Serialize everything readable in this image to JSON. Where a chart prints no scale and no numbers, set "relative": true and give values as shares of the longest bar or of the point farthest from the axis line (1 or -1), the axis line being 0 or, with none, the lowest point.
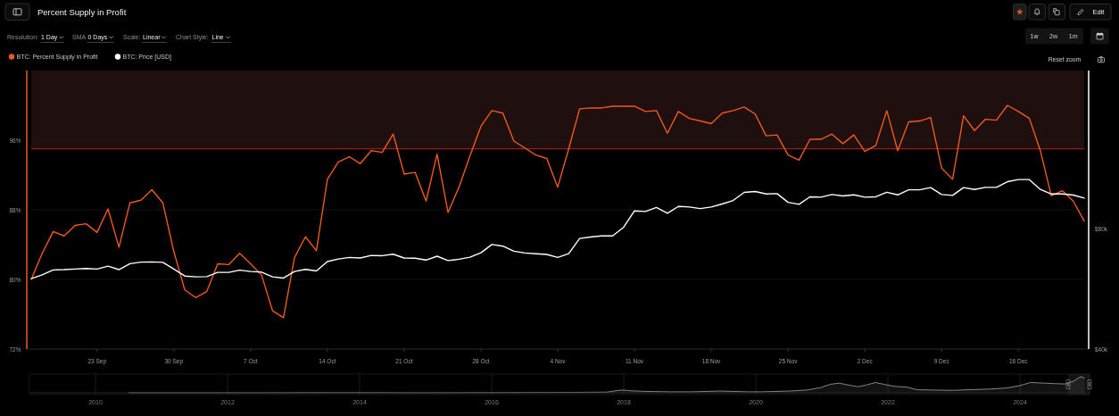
{
  "chart_data": [
    {
      "type": "line",
      "title": "Percent Supply in Profit",
      "annotations": [
        "Resolution:",
        "1 Day",
        "SMA",
        "0 Days",
        "Scale:",
        "Linear",
        "Chart Style:",
        "Line",
        "1w",
        "2w",
        "1m",
        "Reset zoom",
        "Edit"
      ],
      "x": [
        "--09-17",
        "--09-18",
        "--09-19",
        "--09-20",
        "--09-21",
        "--09-22",
        "--09-23",
        "--09-24",
        "--09-25",
        "--09-26",
        "--09-27",
        "--09-28",
        "--09-29",
        "--09-30",
        "--10-01",
        "--10-02",
        "--10-03",
        "--10-04",
        "--10-05",
        "--10-06",
        "--10-07",
        "--10-08",
        "--10-09",
        "--10-10",
        "--10-11",
        "--10-12",
        "--10-13",
        "--10-14",
        "--10-15",
        "--10-16",
        "--10-17",
        "--10-18",
        "--10-19",
        "--10-20",
        "--10-21",
        "--10-22",
        "--10-23",
        "--10-24",
        "--10-25",
        "--10-26",
        "--10-27",
        "--10-28",
        "--10-29",
        "--10-30",
        "--10-31",
        "--11-01",
        "--11-02",
        "--11-03",
        "--11-04",
        "--11-05",
        "--11-06",
        "--11-07",
        "--11-08",
        "--11-09",
        "--11-10",
        "--11-11",
        "--11-12",
        "--11-13",
        "--11-14",
        "--11-15",
        "--11-16",
        "--11-17",
        "--11-18",
        "--11-19",
        "--11-20",
        "--11-21",
        "--11-22",
        "--11-23",
        "--11-24",
        "--11-25",
        "--11-26",
        "--11-27",
        "--11-28",
        "--11-29",
        "--11-30",
        "--12-01",
        "--12-02",
        "--12-03",
        "--12-04",
        "--12-05",
        "--12-06",
        "--12-07",
        "--12-08",
        "--12-09",
        "--12-10",
        "--12-11",
        "--12-12",
        "--12-13",
        "--12-14",
        "--12-15",
        "--12-16",
        "--12-17",
        "--12-18",
        "--12-19",
        "--12-20",
        "--12-21",
        "--12-22"
      ],
      "xlim": [
        "--09-17",
        "--12-22"
      ],
      "xticks": [
        {
          "value": "--09-23",
          "label": "23 Sep"
        },
        {
          "value": "--09-30",
          "label": "30 Sep"
        },
        {
          "value": "--10-07",
          "label": "7 Oct"
        },
        {
          "value": "--10-14",
          "label": "14 Oct"
        },
        {
          "value": "--10-21",
          "label": "21 Oct"
        },
        {
          "value": "--10-28",
          "label": "28 Oct"
        },
        {
          "value": "--11-04",
          "label": "4 Nov"
        },
        {
          "value": "--11-11",
          "label": "11 Nov"
        },
        {
          "value": "--11-18",
          "label": "18 Nov"
        },
        {
          "value": "--11-25",
          "label": "25 Nov"
        },
        {
          "value": "--12-02",
          "label": "2 Dec"
        },
        {
          "value": "--12-09",
          "label": "9 Dec"
        },
        {
          "value": "--12-16",
          "label": "16 Dec"
        }
      ],
      "ylim": [
        72,
        104
      ],
      "yticks": [
        {
          "value": 72,
          "label": "72%"
        },
        {
          "value": 80,
          "label": "80%"
        },
        {
          "value": 88,
          "label": "88%"
        },
        {
          "value": 96,
          "label": "96%"
        }
      ],
      "y2lim": [
        40000,
        200000
      ],
      "y2ticks": [
        {
          "value": 40000,
          "label": "$40k"
        },
        {
          "value": 80000,
          "label": "$80k"
        }
      ],
      "log": "y2",
      "grid": "y",
      "legend": "top left",
      "bands": [
        {
          "axis": "y",
          "from": 95,
          "to": 104,
          "color": "#200f0f"
        }
      ],
      "ref_lines": [
        {
          "axis": "y",
          "value": 95,
          "color": "#b8261b"
        }
      ],
      "series": [
        {
          "name": "BTC: Percent Supply in Profit",
          "color": "#f0581c",
          "values": [
            80.0,
            83.0,
            85.5,
            85.0,
            86.2,
            86.4,
            85.4,
            88.1,
            83.7,
            88.8,
            89.1,
            90.3,
            88.8,
            83.2,
            78.8,
            77.9,
            78.6,
            81.8,
            81.7,
            83.0,
            81.8,
            80.5,
            76.4,
            75.6,
            82.5,
            84.9,
            83.3,
            91.5,
            93.5,
            94.1,
            93.3,
            94.8,
            94.6,
            96.7,
            92.1,
            92.3,
            89.0,
            94.4,
            87.7,
            90.6,
            94.2,
            97.6,
            99.4,
            99.1,
            95.9,
            95.1,
            94.3,
            93.9,
            90.6,
            95.0,
            99.6,
            99.7,
            99.7,
            99.9,
            99.9,
            99.9,
            99.3,
            99.4,
            96.8,
            99.3,
            98.5,
            98.2,
            97.9,
            99.1,
            99.4,
            99.8,
            99.0,
            96.5,
            96.6,
            94.3,
            93.7,
            96.1,
            96.1,
            96.7,
            95.6,
            96.6,
            94.7,
            95.4,
            99.4,
            94.8,
            98.1,
            98.2,
            98.6,
            92.8,
            91.5,
            98.8,
            97.1,
            98.4,
            98.3,
            100.0,
            99.3,
            98.5,
            94.8,
            89.6,
            90.2,
            89.0,
            86.7
          ]
        },
        {
          "name": "BTC: Price [USD]",
          "color": "#ffffff",
          "axis": "y2",
          "values": [
            60100,
            61400,
            63200,
            63300,
            63500,
            63700,
            63500,
            64600,
            63300,
            65500,
            66100,
            66200,
            66000,
            63500,
            61000,
            60700,
            60800,
            62300,
            62300,
            63100,
            62600,
            62400,
            60700,
            60300,
            62600,
            63400,
            62800,
            66300,
            67300,
            67900,
            67700,
            68700,
            68600,
            69200,
            67700,
            67600,
            66900,
            68400,
            66700,
            67200,
            68000,
            69800,
            73200,
            72500,
            70400,
            69700,
            69400,
            69100,
            67900,
            69400,
            75800,
            76400,
            76900,
            76900,
            80800,
            88900,
            88600,
            90700,
            87700,
            91200,
            90900,
            90100,
            90900,
            92500,
            94400,
            98900,
            99400,
            98000,
            98200,
            93400,
            92300,
            96400,
            96200,
            97700,
            96900,
            97500,
            96200,
            96400,
            99000,
            97500,
            100400,
            100400,
            101700,
            97700,
            97200,
            101700,
            100600,
            101800,
            101800,
            105200,
            106500,
            106500,
            100600,
            98000,
            98000,
            97400,
            95700
          ]
        }
      ]
    },
    {
      "type": "area",
      "relative": true,
      "x": [
        2010.5,
        2011.5,
        2012.5,
        2013.5,
        2014.0,
        2015.0,
        2016.0,
        2016.95,
        2017.74,
        2017.92,
        2018.0,
        2018.08,
        2018.31,
        2018.68,
        2019.04,
        2019.46,
        2019.88,
        2020.09,
        2020.51,
        2020.77,
        2020.98,
        2021.13,
        2021.26,
        2021.39,
        2021.55,
        2021.68,
        2021.81,
        2021.94,
        2022.1,
        2022.28,
        2022.44,
        2022.7,
        2022.96,
        2023.22,
        2023.54,
        2023.8,
        2023.98,
        2024.16,
        2024.37,
        2024.53,
        2024.69,
        2024.82,
        2024.9,
        2024.94,
        2024.98
      ],
      "values": [
        0,
        0,
        0,
        0.01,
        0.01,
        0,
        0.01,
        0.02,
        0.04,
        0.15,
        0.17,
        0.13,
        0.09,
        0.06,
        0.06,
        0.11,
        0.06,
        0.06,
        0.11,
        0.17,
        0.32,
        0.53,
        0.6,
        0.49,
        0.38,
        0.49,
        0.64,
        0.53,
        0.4,
        0.36,
        0.19,
        0.17,
        0.15,
        0.19,
        0.23,
        0.3,
        0.43,
        0.64,
        0.6,
        0.57,
        0.55,
        0.74,
        0.96,
        1.0,
        0.89
      ],
      "color": "#a3a3a3",
      "xlim": [
        2009,
        2025
      ],
      "xticks": [
        2010,
        2012,
        2014,
        2016,
        2018,
        2020,
        2022,
        2024
      ],
      "grid": "x"
    }
  ]
}
